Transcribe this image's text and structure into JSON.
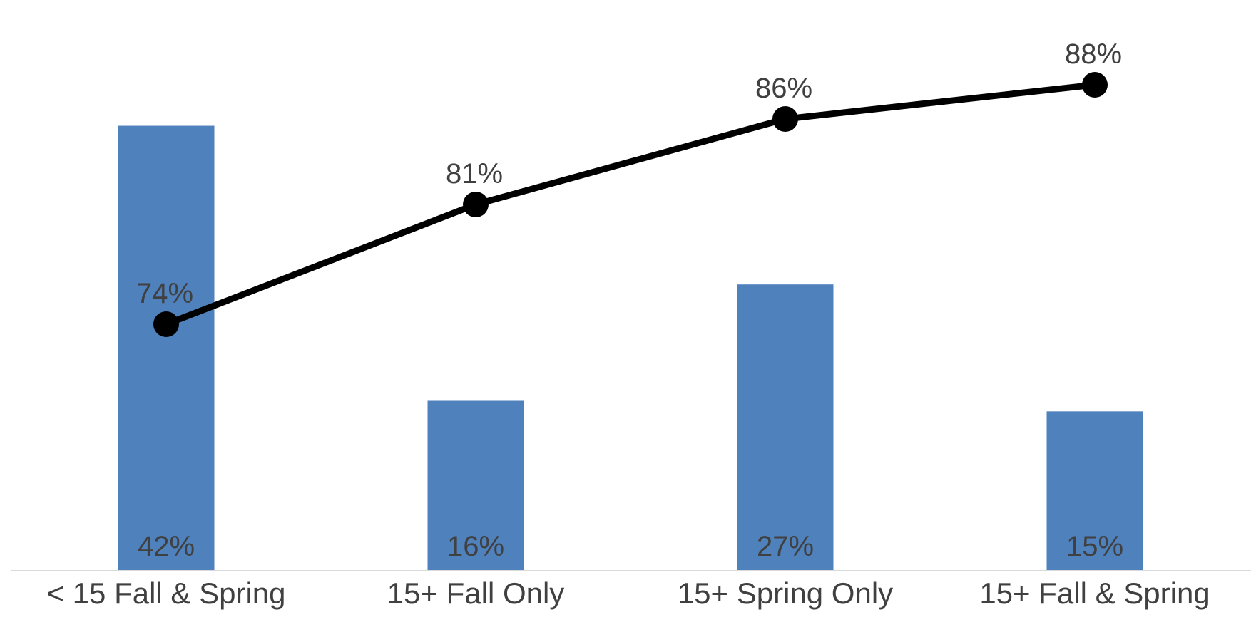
{
  "chart_data": {
    "type": "bar",
    "categories": [
      "< 15 Fall & Spring",
      "15+ Fall Only",
      "15+ Spring Only",
      "15+ Fall & Spring"
    ],
    "series": [
      {
        "type": "bar",
        "values": [
          42,
          16,
          27,
          15
        ],
        "labels": [
          "42%",
          "16%",
          "27%",
          "15%"
        ],
        "color": "#4f81bd"
      },
      {
        "type": "line",
        "values": [
          74,
          81,
          86,
          88
        ],
        "labels": [
          "74%",
          "81%",
          "86%",
          "88%"
        ],
        "color": "#000000"
      }
    ],
    "bar_ylim": [
      0,
      45
    ],
    "line_ylim": [
      66,
      90
    ],
    "grid": false,
    "legend": "none",
    "axis_color": "#d9d9d9",
    "label_color": "#404040"
  }
}
